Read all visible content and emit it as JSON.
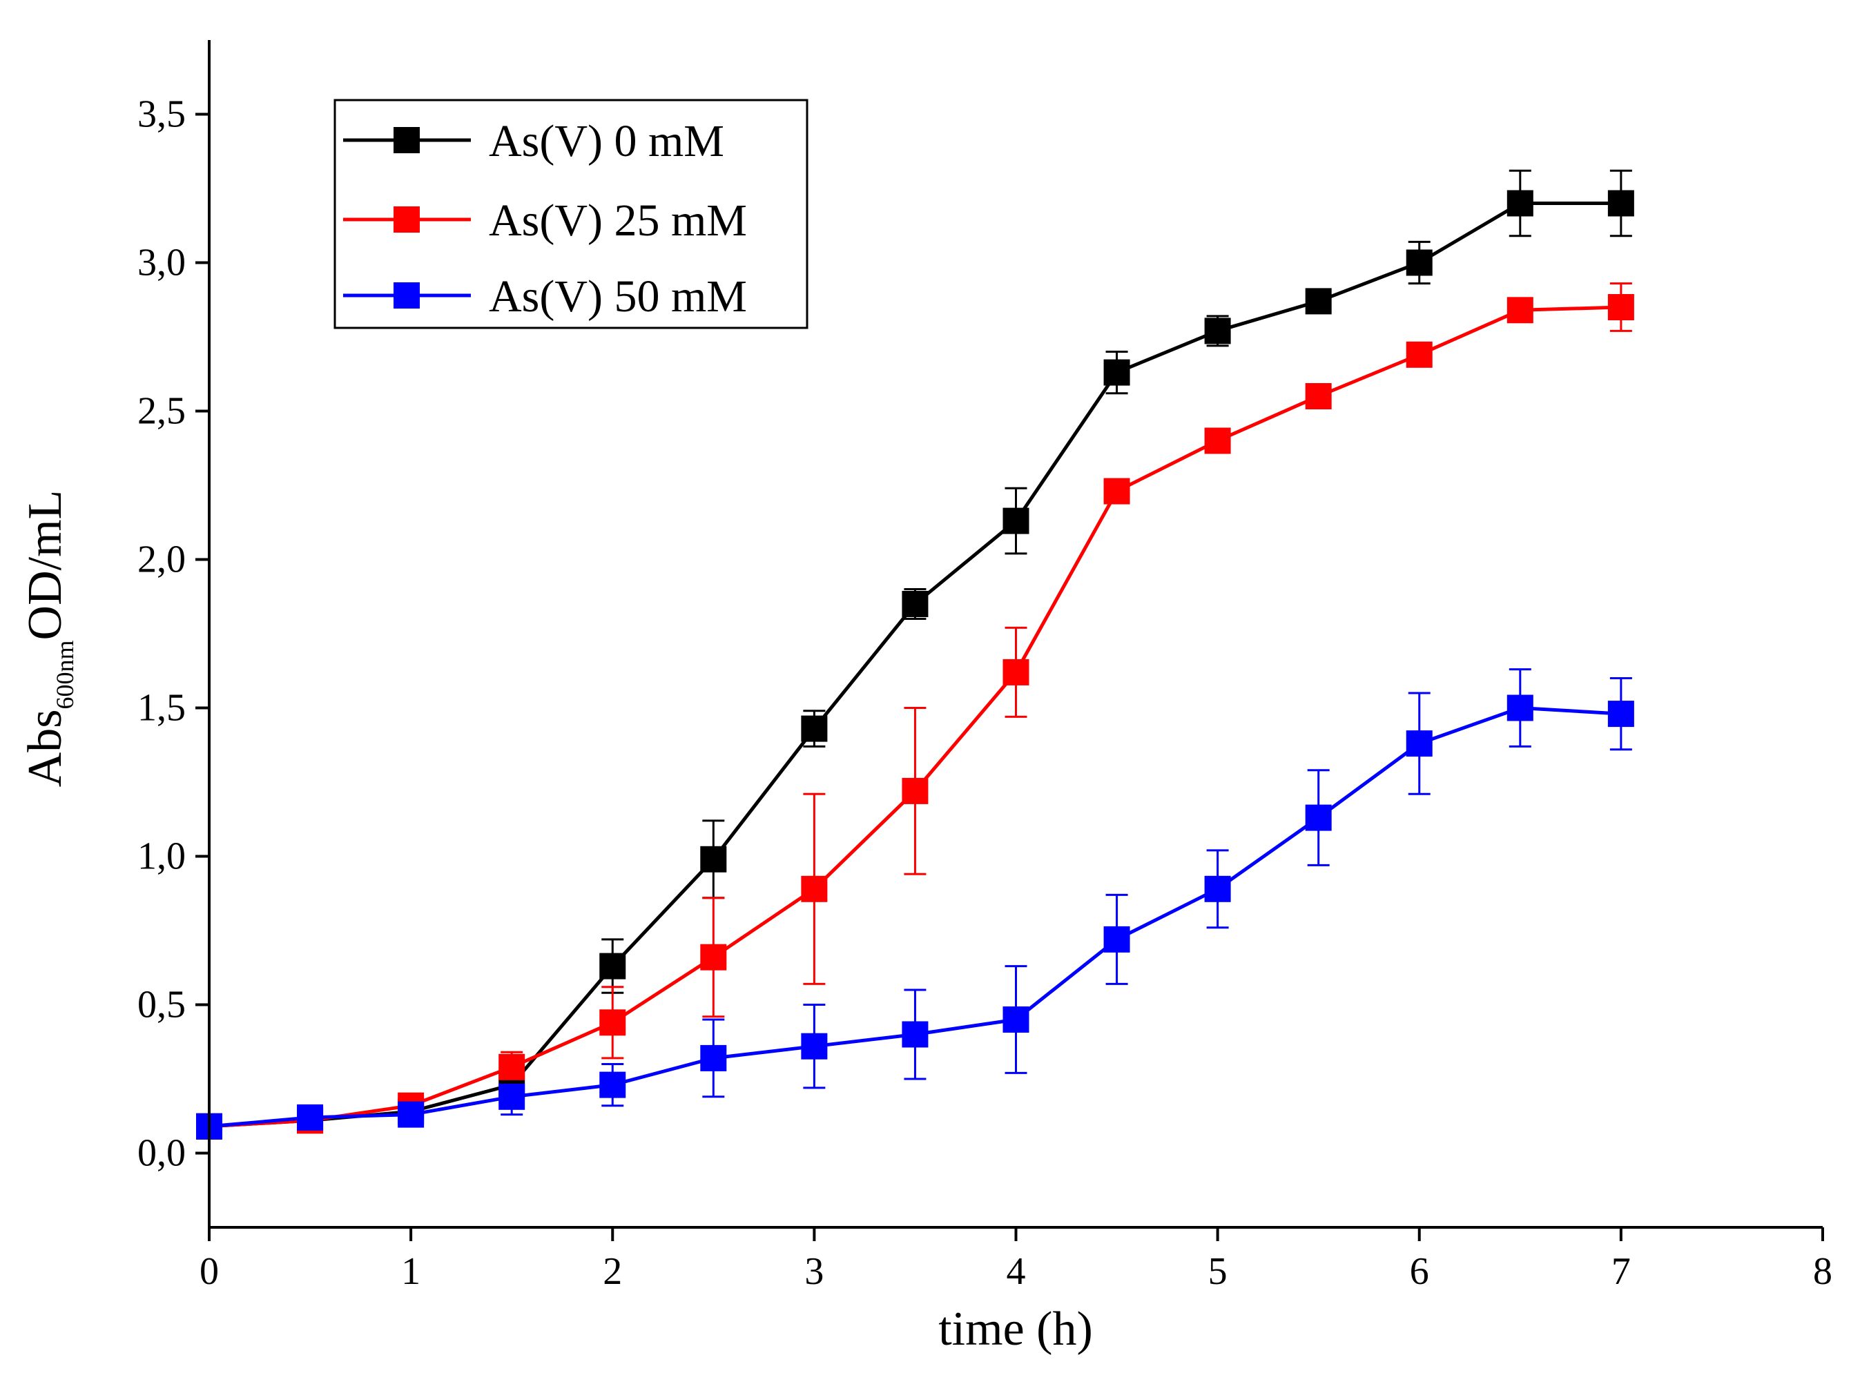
{
  "chart_data": {
    "type": "line",
    "title": "",
    "xlabel": "time (h)",
    "ylabel": {
      "main": "Abs",
      "subscript": "600nm",
      "suffix": "OD/mL"
    },
    "xlim": [
      0,
      8
    ],
    "ylim": [
      -0.25,
      3.75
    ],
    "x_ticks": [
      0,
      1,
      2,
      3,
      4,
      5,
      6,
      7,
      8
    ],
    "x_tick_labels": [
      "0",
      "1",
      "2",
      "3",
      "4",
      "5",
      "6",
      "7",
      "8"
    ],
    "y_ticks": [
      0,
      0.5,
      1,
      1.5,
      2,
      2.5,
      3,
      3.5
    ],
    "y_tick_labels": [
      "0,0",
      "0,5",
      "1,0",
      "1,5",
      "2,0",
      "2,5",
      "3,0",
      "3,5"
    ],
    "grid": false,
    "legend_position": "top-left",
    "x": [
      0,
      0.5,
      1,
      1.5,
      2,
      2.5,
      3,
      3.5,
      4,
      4.5,
      5,
      5.5,
      6,
      6.5,
      7
    ],
    "series": [
      {
        "name": "As(V) 0 mM",
        "color": "#000000",
        "marker": "square",
        "values": [
          0.09,
          0.11,
          0.14,
          0.23,
          0.63,
          0.99,
          1.43,
          1.85,
          2.13,
          2.63,
          2.77,
          2.87,
          3.0,
          3.2,
          3.2
        ],
        "errors": [
          0.01,
          0.01,
          0.01,
          0.02,
          0.09,
          0.13,
          0.06,
          0.05,
          0.11,
          0.07,
          0.05,
          0.02,
          0.07,
          0.11,
          0.11
        ]
      },
      {
        "name": "As(V) 25 mM",
        "color": "#ff0000",
        "marker": "square",
        "values": [
          0.09,
          0.11,
          0.16,
          0.29,
          0.44,
          0.66,
          0.89,
          1.22,
          1.62,
          2.23,
          2.4,
          2.55,
          2.69,
          2.84,
          2.85
        ],
        "errors": [
          0.01,
          0.01,
          0.02,
          0.05,
          0.12,
          0.2,
          0.32,
          0.28,
          0.15,
          0.01,
          0.01,
          0.01,
          0.01,
          0.04,
          0.08
        ]
      },
      {
        "name": "As(V) 50 mM",
        "color": "#0000ff",
        "marker": "square",
        "values": [
          0.09,
          0.12,
          0.13,
          0.19,
          0.23,
          0.32,
          0.36,
          0.4,
          0.45,
          0.72,
          0.89,
          1.13,
          1.38,
          1.5,
          1.48
        ],
        "errors": [
          0.01,
          0.01,
          0.02,
          0.06,
          0.07,
          0.13,
          0.14,
          0.15,
          0.18,
          0.15,
          0.13,
          0.16,
          0.17,
          0.13,
          0.12
        ]
      }
    ]
  }
}
